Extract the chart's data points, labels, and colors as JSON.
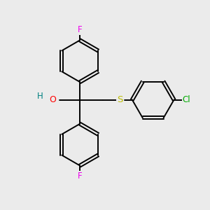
{
  "background_color": "#ebebeb",
  "bond_color": "#000000",
  "bond_width": 1.4,
  "atom_colors": {
    "F": "#ee00ee",
    "O": "#ff0000",
    "H": "#008080",
    "S": "#bbbb00",
    "Cl": "#00aa00",
    "C": "#000000"
  },
  "font_size_atom": 8.5,
  "figsize": [
    3.0,
    3.0
  ],
  "dpi": 100,
  "xlim": [
    0,
    10
  ],
  "ylim": [
    0,
    10
  ]
}
